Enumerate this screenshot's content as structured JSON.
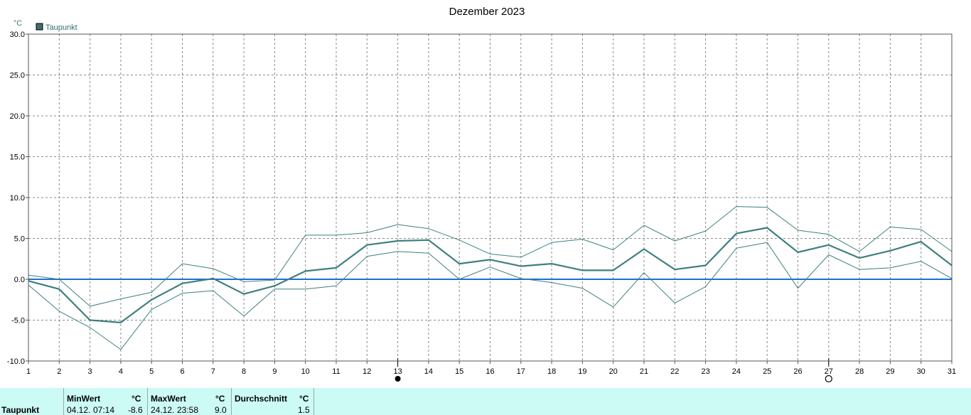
{
  "chart_data": {
    "type": "line",
    "title": "Dezember 2023",
    "ylabel": "°C",
    "xlabel": "",
    "ylim": [
      -10,
      30
    ],
    "yticks": [
      "-10.0",
      "-5.0",
      "0.0",
      "5.0",
      "10.0",
      "15.0",
      "20.0",
      "25.0",
      "30.0"
    ],
    "x": [
      1,
      2,
      3,
      4,
      5,
      6,
      7,
      8,
      9,
      10,
      11,
      12,
      13,
      14,
      15,
      16,
      17,
      18,
      19,
      20,
      21,
      22,
      23,
      24,
      25,
      26,
      27,
      28,
      29,
      30,
      31
    ],
    "grid": true,
    "legend": "top-left",
    "series": [
      {
        "name": "Taupunkt",
        "color": "#3f7f7f",
        "values": [
          -0.2,
          -1.2,
          -5.0,
          -5.3,
          -2.5,
          -0.5,
          0.1,
          -1.8,
          -0.8,
          1.0,
          1.4,
          4.2,
          4.7,
          4.8,
          1.9,
          2.4,
          1.6,
          1.9,
          1.1,
          1.1,
          3.7,
          1.2,
          1.7,
          5.6,
          6.3,
          3.3,
          4.2,
          2.6,
          3.5,
          4.6,
          1.7
        ]
      },
      {
        "name": "",
        "role": "max",
        "color": "#3f7f7f",
        "values": [
          0.5,
          0.0,
          -3.3,
          -2.4,
          -1.6,
          1.9,
          1.3,
          -0.3,
          -0.1,
          5.4,
          5.4,
          5.7,
          6.7,
          6.2,
          4.8,
          3.1,
          2.7,
          4.5,
          4.9,
          3.6,
          6.6,
          4.7,
          5.9,
          8.9,
          8.8,
          6.0,
          5.5,
          3.4,
          6.4,
          6.1,
          3.4
        ]
      },
      {
        "name": "",
        "role": "min",
        "color": "#3f7f7f",
        "values": [
          -0.7,
          -3.9,
          -5.9,
          -8.6,
          -3.7,
          -1.7,
          -1.4,
          -4.5,
          -1.2,
          -1.2,
          -0.8,
          2.8,
          3.4,
          3.2,
          0.0,
          1.5,
          0.1,
          -0.4,
          -1.1,
          -3.4,
          0.8,
          -2.9,
          -0.9,
          3.8,
          4.5,
          -1.1,
          3.0,
          1.2,
          1.4,
          2.2,
          0.1
        ]
      }
    ],
    "reference_line": {
      "value": 0.0,
      "color": "#1a70d8"
    },
    "moon_phases": [
      {
        "day": 13,
        "symbol": "●"
      },
      {
        "day": 27,
        "symbol": "O"
      }
    ]
  },
  "footer": {
    "row_label": "Taupunkt",
    "min": {
      "header": "MinWert",
      "unit": "°C",
      "date": "04.12.",
      "time": "07:14",
      "value": "-8.6"
    },
    "max": {
      "header": "MaxWert",
      "unit": "°C",
      "date": "24.12.",
      "time": "23:58",
      "value": "9.0"
    },
    "avg": {
      "header": "Durchschnitt",
      "unit": "°C",
      "value": "1.5"
    }
  }
}
